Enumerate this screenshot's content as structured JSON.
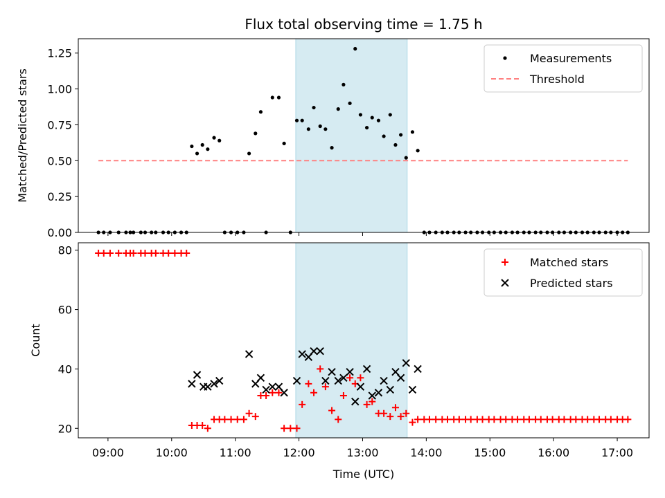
{
  "chart_data": {
    "title": "Flux total observing time = 1.75 h",
    "xlabel": "Time (UTC)",
    "xticks": [
      "09:00",
      "10:00",
      "11:00",
      "12:00",
      "13:00",
      "14:00",
      "15:00",
      "16:00",
      "17:00"
    ],
    "xlim": [
      "08:32",
      "17:30"
    ],
    "shaded_interval": [
      "11:57",
      "13:42"
    ],
    "shade_color": "#add8e6",
    "panels": [
      {
        "type": "scatter",
        "ylabel": "Matched/Predicted stars",
        "ylim": [
          0,
          1.35
        ],
        "yticks": [
          "0.00",
          "0.25",
          "0.50",
          "0.75",
          "1.00",
          "1.25"
        ],
        "legend_position": "upper right",
        "series": [
          {
            "name": "Measurements",
            "marker": "dot",
            "color": "#000000",
            "x": [
              "08:51",
              "08:56",
              "09:02",
              "09:10",
              "09:17",
              "09:21",
              "09:24",
              "09:31",
              "09:35",
              "09:41",
              "09:45",
              "09:52",
              "09:57",
              "10:03",
              "10:09",
              "10:14",
              "10:19",
              "10:24",
              "10:29",
              "10:34",
              "10:40",
              "10:45",
              "10:50",
              "10:56",
              "11:02",
              "11:08",
              "11:13",
              "11:19",
              "11:24",
              "11:29",
              "11:35",
              "11:41",
              "11:46",
              "11:52",
              "11:58",
              "12:03",
              "12:09",
              "12:14",
              "12:20",
              "12:25",
              "12:31",
              "12:37",
              "12:42",
              "12:48",
              "12:53",
              "12:58",
              "13:04",
              "13:09",
              "13:15",
              "13:20",
              "13:26",
              "13:31",
              "13:36",
              "13:41",
              "13:47",
              "13:52",
              "13:58",
              "14:03",
              "14:09",
              "14:15",
              "14:20",
              "14:26",
              "14:31",
              "14:37",
              "14:42",
              "14:48",
              "14:53",
              "14:59",
              "15:04",
              "15:10",
              "15:15",
              "15:21",
              "15:26",
              "15:32",
              "15:37",
              "15:43",
              "15:48",
              "15:54",
              "15:59",
              "16:05",
              "16:10",
              "16:16",
              "16:21",
              "16:27",
              "16:32",
              "16:38",
              "16:43",
              "16:49",
              "16:54",
              "17:00",
              "17:05",
              "17:10"
            ],
            "y": [
              0,
              0,
              0,
              0,
              0,
              0,
              0,
              0,
              0,
              0,
              0,
              0,
              0,
              0,
              0,
              0,
              0.6,
              0.55,
              0.61,
              0.58,
              0.66,
              0.64,
              0,
              0,
              0,
              0,
              0.55,
              0.69,
              0.84,
              0,
              0.94,
              0.94,
              0.62,
              0,
              0.78,
              0.78,
              0.72,
              0.87,
              0.74,
              0.72,
              0.59,
              0.86,
              1.03,
              0.9,
              1.28,
              0.82,
              0.73,
              0.8,
              0.78,
              0.67,
              0.82,
              0.61,
              0.68,
              0.52,
              0.7,
              0.57,
              0,
              0,
              0,
              0,
              0,
              0,
              0,
              0,
              0,
              0,
              0,
              0,
              0,
              0,
              0,
              0,
              0,
              0,
              0,
              0,
              0,
              0,
              0,
              0,
              0,
              0,
              0,
              0,
              0,
              0,
              0,
              0,
              0,
              0,
              0,
              0
            ]
          },
          {
            "name": "Threshold",
            "type": "line",
            "style": "dashed",
            "color": "#ff8080",
            "x": [
              "08:51",
              "17:10"
            ],
            "y": [
              0.5,
              0.5
            ]
          }
        ]
      },
      {
        "type": "scatter",
        "ylabel": "Count",
        "ylim": [
          16.8,
          82.5
        ],
        "yticks": [
          "20",
          "40",
          "60",
          "80"
        ],
        "legend_position": "upper right",
        "series": [
          {
            "name": "Matched stars",
            "marker": "plus",
            "color": "#ff0000",
            "x": [
              "08:51",
              "08:56",
              "09:02",
              "09:10",
              "09:17",
              "09:21",
              "09:24",
              "09:31",
              "09:35",
              "09:41",
              "09:45",
              "09:52",
              "09:57",
              "10:03",
              "10:09",
              "10:14",
              "10:19",
              "10:24",
              "10:29",
              "10:34",
              "10:40",
              "10:45",
              "10:50",
              "10:56",
              "11:02",
              "11:08",
              "11:13",
              "11:19",
              "11:24",
              "11:29",
              "11:35",
              "11:41",
              "11:46",
              "11:52",
              "11:58",
              "12:03",
              "12:09",
              "12:14",
              "12:20",
              "12:25",
              "12:31",
              "12:37",
              "12:42",
              "12:48",
              "12:53",
              "12:58",
              "13:04",
              "13:09",
              "13:15",
              "13:20",
              "13:26",
              "13:31",
              "13:36",
              "13:41",
              "13:47",
              "13:52",
              "13:58",
              "14:03",
              "14:09",
              "14:15",
              "14:20",
              "14:26",
              "14:31",
              "14:37",
              "14:42",
              "14:48",
              "14:53",
              "14:59",
              "15:04",
              "15:10",
              "15:15",
              "15:21",
              "15:26",
              "15:32",
              "15:37",
              "15:43",
              "15:48",
              "15:54",
              "15:59",
              "16:05",
              "16:10",
              "16:16",
              "16:21",
              "16:27",
              "16:32",
              "16:38",
              "16:43",
              "16:49",
              "16:54",
              "17:00",
              "17:05",
              "17:10"
            ],
            "y": [
              79,
              79,
              79,
              79,
              79,
              79,
              79,
              79,
              79,
              79,
              79,
              79,
              79,
              79,
              79,
              79,
              21,
              21,
              21,
              20,
              23,
              23,
              23,
              23,
              23,
              23,
              25,
              24,
              31,
              31,
              32,
              32,
              20,
              20,
              20,
              28,
              35,
              32,
              40,
              34,
              26,
              23,
              31,
              37,
              35,
              37,
              28,
              29,
              25,
              25,
              24,
              27,
              24,
              25,
              22,
              23,
              23,
              23,
              23,
              23,
              23,
              23,
              23,
              23,
              23,
              23,
              23,
              23,
              23,
              23,
              23,
              23,
              23,
              23,
              23,
              23,
              23,
              23,
              23,
              23,
              23,
              23,
              23,
              23,
              23,
              23,
              23,
              23,
              23,
              23,
              23,
              23
            ]
          },
          {
            "name": "Predicted stars",
            "marker": "x",
            "color": "#000000",
            "x": [
              "10:19",
              "10:24",
              "10:30",
              "10:34",
              "10:40",
              "10:45",
              "11:13",
              "11:19",
              "11:24",
              "11:29",
              "11:35",
              "11:41",
              "11:46",
              "11:58",
              "12:03",
              "12:09",
              "12:14",
              "12:20",
              "12:25",
              "12:31",
              "12:37",
              "12:42",
              "12:48",
              "12:53",
              "12:58",
              "13:04",
              "13:09",
              "13:15",
              "13:20",
              "13:26",
              "13:31",
              "13:36",
              "13:41",
              "13:47",
              "13:52"
            ],
            "y": [
              35,
              38,
              34,
              34,
              35,
              36,
              45,
              35,
              37,
              33,
              34,
              34,
              32,
              36,
              45,
              44,
              46,
              46,
              36,
              39,
              36,
              37,
              39,
              29,
              34,
              40,
              31,
              32,
              36,
              33,
              39,
              37,
              42,
              33,
              40
            ]
          }
        ]
      }
    ]
  }
}
